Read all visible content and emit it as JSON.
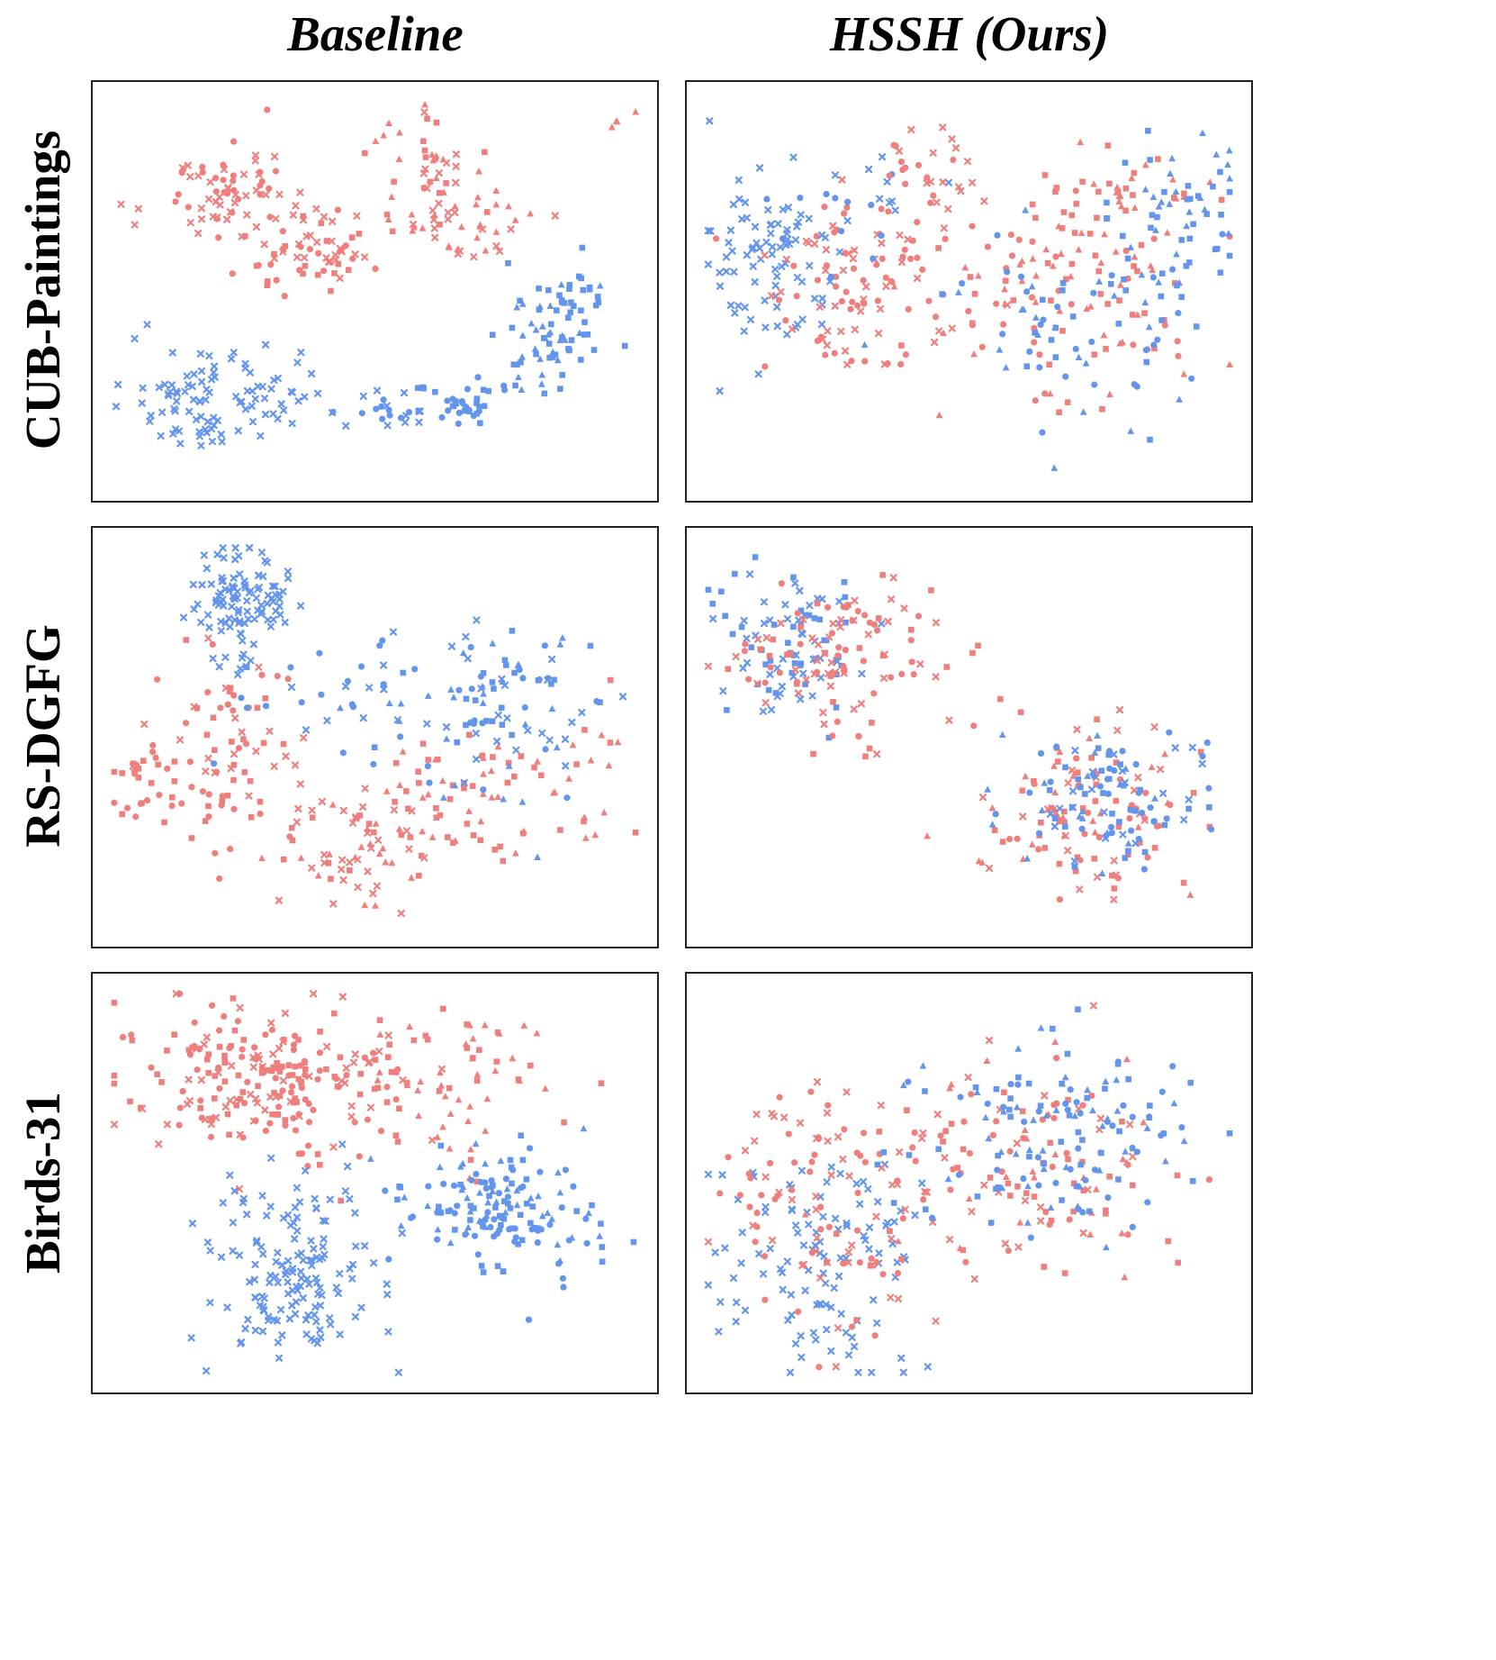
{
  "columns": [
    "Baseline",
    "HSSH (Ours)"
  ],
  "rows": [
    "CUB-Paintings",
    "RS-DGFG",
    "Birds-31"
  ],
  "colors": {
    "domain_a": "#ee7f7c",
    "domain_b": "#6495ed"
  },
  "marker_kinds": [
    "circle",
    "square",
    "triangle",
    "cross"
  ],
  "chart_data": [
    {
      "type": "scatter",
      "row": "CUB-Paintings",
      "column": "Baseline",
      "xlim": [
        0,
        100
      ],
      "ylim": [
        0,
        100
      ],
      "grid": false,
      "axes_visible": false,
      "clusters": [
        {
          "c": "a",
          "cx": 22,
          "cy": 24,
          "sx": 6,
          "sy": 6,
          "n": 70,
          "m": [
            "cross",
            "circle"
          ]
        },
        {
          "c": "a",
          "cx": 38,
          "cy": 39,
          "sx": 7,
          "sy": 6,
          "n": 60,
          "m": [
            "cross",
            "circle",
            "square"
          ]
        },
        {
          "c": "a",
          "cx": 59,
          "cy": 20,
          "sx": 5,
          "sy": 8,
          "n": 50,
          "m": [
            "square",
            "triangle",
            "cross"
          ]
        },
        {
          "c": "a",
          "cx": 69,
          "cy": 33,
          "sx": 5,
          "sy": 5,
          "n": 30,
          "m": [
            "triangle",
            "cross"
          ]
        },
        {
          "c": "a",
          "cx": 95,
          "cy": 6,
          "sx": 2,
          "sy": 2,
          "n": 4,
          "m": [
            "triangle"
          ]
        },
        {
          "c": "b",
          "cx": 20,
          "cy": 78,
          "sx": 9,
          "sy": 7,
          "n": 100,
          "m": [
            "cross"
          ]
        },
        {
          "c": "b",
          "cx": 66,
          "cy": 79,
          "sx": 4,
          "sy": 4,
          "n": 35,
          "m": [
            "square",
            "circle"
          ]
        },
        {
          "c": "b",
          "cx": 52,
          "cy": 81,
          "sx": 4,
          "sy": 3,
          "n": 20,
          "m": [
            "cross",
            "circle"
          ]
        },
        {
          "c": "b",
          "cx": 82,
          "cy": 63,
          "sx": 6,
          "sy": 7,
          "n": 60,
          "m": [
            "square",
            "triangle"
          ]
        },
        {
          "c": "b",
          "cx": 87,
          "cy": 52,
          "sx": 3,
          "sy": 4,
          "n": 20,
          "m": [
            "square"
          ]
        }
      ]
    },
    {
      "type": "scatter",
      "row": "CUB-Paintings",
      "column": "HSSH (Ours)",
      "xlim": [
        0,
        100
      ],
      "ylim": [
        0,
        100
      ],
      "grid": false,
      "axes_visible": false,
      "clusters": [
        {
          "c": "b",
          "cx": 12,
          "cy": 42,
          "sx": 6,
          "sy": 12,
          "n": 80,
          "m": [
            "cross"
          ]
        },
        {
          "c": "a",
          "cx": 30,
          "cy": 45,
          "sx": 12,
          "sy": 14,
          "n": 110,
          "m": [
            "cross",
            "circle"
          ]
        },
        {
          "c": "a",
          "cx": 68,
          "cy": 55,
          "sx": 14,
          "sy": 14,
          "n": 90,
          "m": [
            "square",
            "circle",
            "triangle"
          ]
        },
        {
          "c": "b",
          "cx": 72,
          "cy": 58,
          "sx": 13,
          "sy": 12,
          "n": 70,
          "m": [
            "square",
            "circle",
            "triangle"
          ]
        },
        {
          "c": "a",
          "cx": 76,
          "cy": 27,
          "sx": 7,
          "sy": 9,
          "n": 50,
          "m": [
            "triangle",
            "square"
          ]
        },
        {
          "c": "b",
          "cx": 88,
          "cy": 30,
          "sx": 7,
          "sy": 11,
          "n": 55,
          "m": [
            "triangle",
            "square"
          ]
        },
        {
          "c": "b",
          "cx": 28,
          "cy": 30,
          "sx": 10,
          "sy": 8,
          "n": 25,
          "m": [
            "cross",
            "circle"
          ]
        },
        {
          "c": "a",
          "cx": 39,
          "cy": 15,
          "sx": 5,
          "sy": 9,
          "n": 20,
          "m": [
            "cross",
            "circle"
          ]
        }
      ]
    },
    {
      "type": "scatter",
      "row": "RS-DGFG",
      "column": "Baseline",
      "xlim": [
        0,
        100
      ],
      "ylim": [
        0,
        100
      ],
      "grid": false,
      "axes_visible": false,
      "clusters": [
        {
          "c": "b",
          "cx": 25,
          "cy": 14,
          "sx": 5,
          "sy": 9,
          "n": 110,
          "m": [
            "cross"
          ]
        },
        {
          "c": "a",
          "cx": 22,
          "cy": 55,
          "sx": 7,
          "sy": 12,
          "n": 80,
          "m": [
            "square",
            "cross",
            "circle"
          ]
        },
        {
          "c": "a",
          "cx": 7,
          "cy": 62,
          "sx": 3,
          "sy": 6,
          "n": 25,
          "m": [
            "circle",
            "square"
          ]
        },
        {
          "c": "a",
          "cx": 45,
          "cy": 78,
          "sx": 8,
          "sy": 7,
          "n": 60,
          "m": [
            "square",
            "cross",
            "triangle"
          ]
        },
        {
          "c": "a",
          "cx": 65,
          "cy": 68,
          "sx": 9,
          "sy": 10,
          "n": 60,
          "m": [
            "square",
            "triangle"
          ]
        },
        {
          "c": "b",
          "cx": 72,
          "cy": 42,
          "sx": 10,
          "sy": 12,
          "n": 100,
          "m": [
            "square",
            "circle",
            "triangle",
            "cross"
          ]
        },
        {
          "c": "b",
          "cx": 42,
          "cy": 38,
          "sx": 9,
          "sy": 9,
          "n": 25,
          "m": [
            "cross",
            "circle"
          ]
        },
        {
          "c": "a",
          "cx": 90,
          "cy": 60,
          "sx": 4,
          "sy": 9,
          "n": 20,
          "m": [
            "square",
            "triangle"
          ]
        }
      ]
    },
    {
      "type": "scatter",
      "row": "RS-DGFG",
      "column": "HSSH (Ours)",
      "xlim": [
        0,
        100
      ],
      "ylim": [
        0,
        100
      ],
      "grid": false,
      "axes_visible": false,
      "clusters": [
        {
          "c": "b",
          "cx": 17,
          "cy": 25,
          "sx": 8,
          "sy": 9,
          "n": 90,
          "m": [
            "cross",
            "square"
          ]
        },
        {
          "c": "a",
          "cx": 26,
          "cy": 30,
          "sx": 11,
          "sy": 10,
          "n": 110,
          "m": [
            "cross",
            "square",
            "circle"
          ]
        },
        {
          "c": "a",
          "cx": 72,
          "cy": 70,
          "sx": 10,
          "sy": 10,
          "n": 110,
          "m": [
            "square",
            "triangle",
            "cross",
            "circle"
          ]
        },
        {
          "c": "b",
          "cx": 74,
          "cy": 66,
          "sx": 9,
          "sy": 9,
          "n": 100,
          "m": [
            "square",
            "triangle",
            "circle",
            "cross"
          ]
        }
      ]
    },
    {
      "type": "scatter",
      "row": "Birds-31",
      "column": "Baseline",
      "xlim": [
        0,
        100
      ],
      "ylim": [
        0,
        100
      ],
      "grid": false,
      "axes_visible": false,
      "clusters": [
        {
          "c": "a",
          "cx": 30,
          "cy": 23,
          "sx": 14,
          "sy": 10,
          "n": 220,
          "m": [
            "circle",
            "square",
            "cross"
          ]
        },
        {
          "c": "a",
          "cx": 68,
          "cy": 22,
          "sx": 10,
          "sy": 10,
          "n": 60,
          "m": [
            "square",
            "triangle"
          ]
        },
        {
          "c": "b",
          "cx": 75,
          "cy": 56,
          "sx": 10,
          "sy": 9,
          "n": 150,
          "m": [
            "square",
            "circle",
            "triangle"
          ]
        },
        {
          "c": "b",
          "cx": 34,
          "cy": 74,
          "sx": 8,
          "sy": 12,
          "n": 150,
          "m": [
            "cross"
          ]
        }
      ]
    },
    {
      "type": "scatter",
      "row": "Birds-31",
      "column": "HSSH (Ours)",
      "xlim": [
        0,
        100
      ],
      "ylim": [
        0,
        100
      ],
      "grid": false,
      "axes_visible": false,
      "clusters": [
        {
          "c": "b",
          "cx": 22,
          "cy": 70,
          "sx": 10,
          "sy": 15,
          "n": 110,
          "m": [
            "cross"
          ]
        },
        {
          "c": "a",
          "cx": 25,
          "cy": 56,
          "sx": 11,
          "sy": 15,
          "n": 100,
          "m": [
            "cross",
            "circle"
          ]
        },
        {
          "c": "a",
          "cx": 60,
          "cy": 45,
          "sx": 16,
          "sy": 15,
          "n": 130,
          "m": [
            "square",
            "triangle",
            "cross",
            "circle"
          ]
        },
        {
          "c": "b",
          "cx": 68,
          "cy": 38,
          "sx": 14,
          "sy": 13,
          "n": 130,
          "m": [
            "square",
            "triangle",
            "circle"
          ]
        }
      ]
    }
  ]
}
